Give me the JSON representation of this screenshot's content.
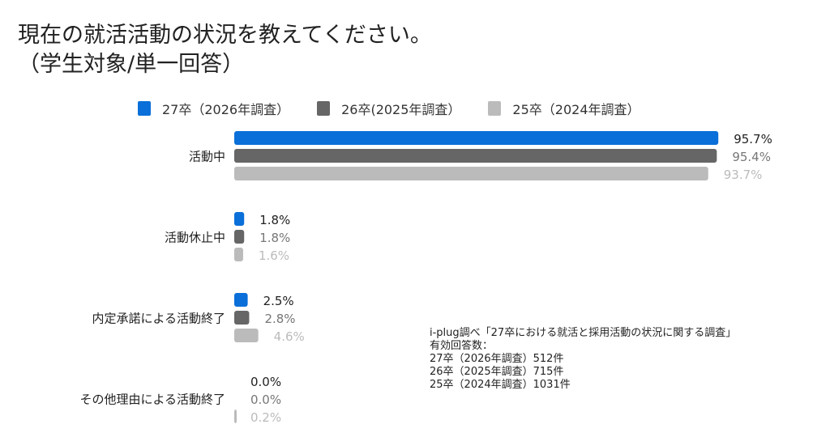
{
  "title_line1": "現在の就活活動の状況を教えてください。",
  "title_line2": "（学生対象/単一回答）",
  "note": {
    "source": "i-plug調べ「27卒における就活と採用活動の状況に関する調査」",
    "label": "有効回答数：",
    "lines": [
      "27卒（2026年調査）512件",
      "26卒（2025年調査）715件",
      "25卒（2024年調査）1031件"
    ]
  },
  "chart_data": {
    "type": "bar",
    "orientation": "horizontal",
    "categories": [
      "活動中",
      "活動休止中",
      "内定承諾による活動終了",
      "その他理由による活動終了"
    ],
    "series": [
      {
        "name": "27卒（2026年調査）",
        "color": "#0a6fd8",
        "label_color": "#222222",
        "values": [
          95.7,
          1.8,
          2.5,
          0.0
        ]
      },
      {
        "name": "26卒(2025年調査）",
        "color": "#666666",
        "label_color": "#777777",
        "values": [
          95.4,
          1.8,
          2.8,
          0.0
        ]
      },
      {
        "name": "25卒（2024年調査）",
        "color": "#bbbbbb",
        "label_color": "#bbbbbb",
        "values": [
          93.7,
          1.6,
          4.6,
          0.2
        ]
      }
    ],
    "value_format": "%",
    "xlim": [
      0,
      100
    ],
    "legend": "top",
    "grid": false
  }
}
